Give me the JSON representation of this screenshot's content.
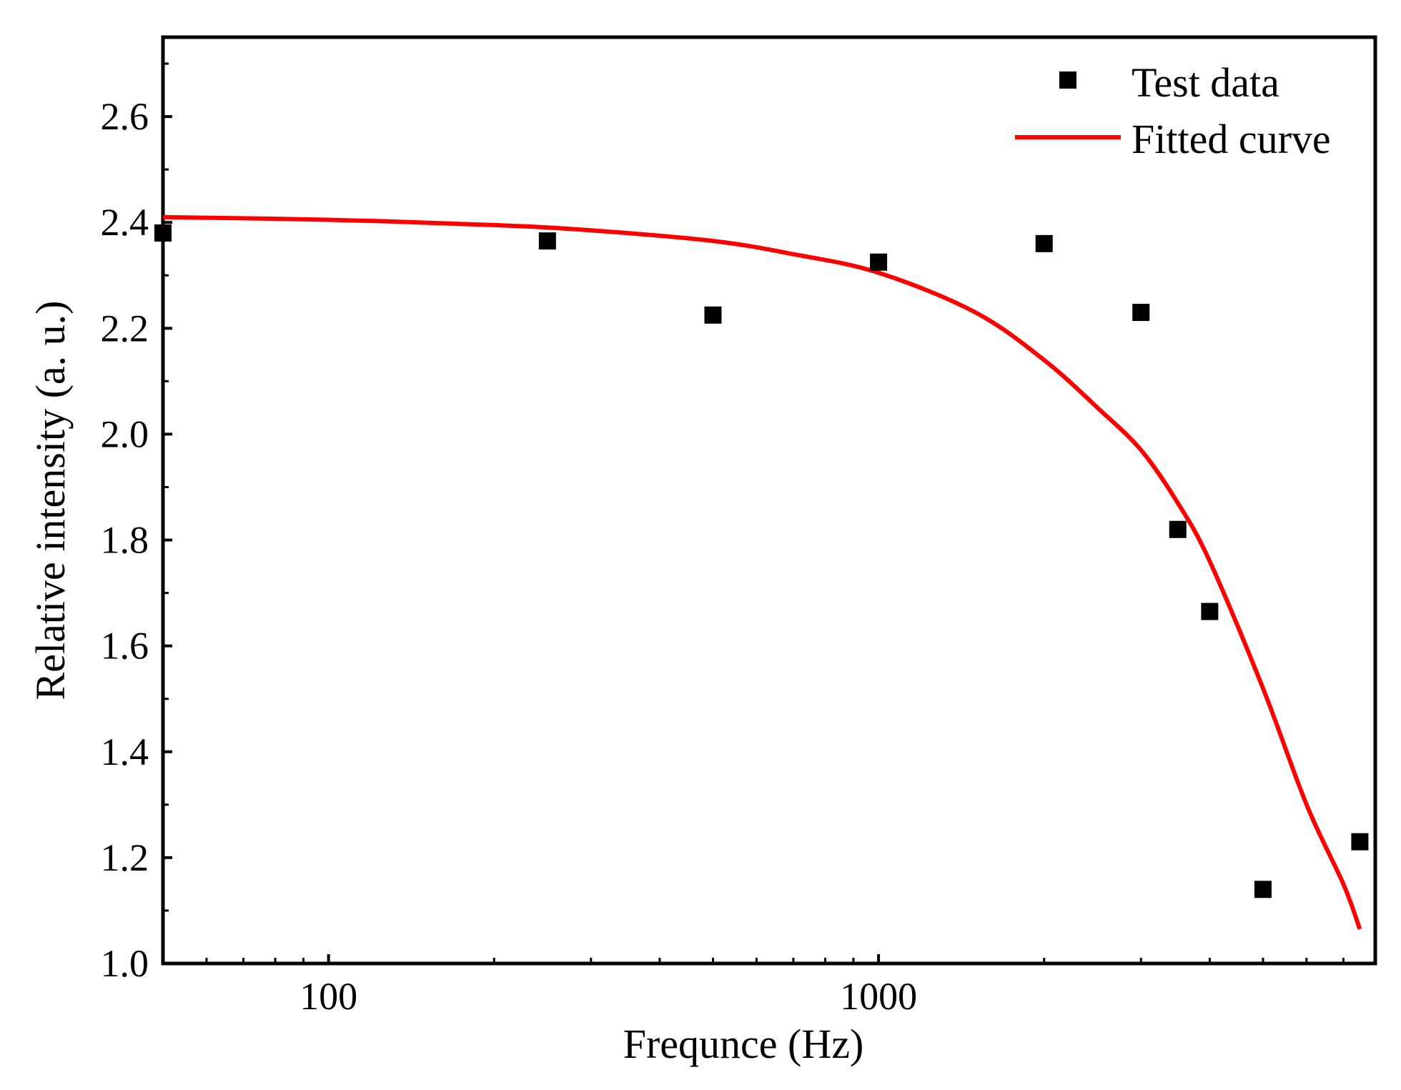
{
  "chart_data": {
    "type": "scatter",
    "xlabel": "Frequnce (Hz)",
    "ylabel": "Relative intensity (a. u.)",
    "xscale": "log",
    "xlim": [
      50,
      8000
    ],
    "ylim": [
      1.0,
      2.75
    ],
    "xticks": [
      100,
      1000
    ],
    "xtick_labels": [
      "100",
      "1000"
    ],
    "yticks": [
      1.0,
      1.2,
      1.4,
      1.6,
      1.8,
      2.0,
      2.2,
      2.4,
      2.6
    ],
    "ytick_labels": [
      "1.0",
      "1.2",
      "1.4",
      "1.6",
      "1.8",
      "2.0",
      "2.2",
      "2.4",
      "2.6"
    ],
    "legend_position": "top-right",
    "series": [
      {
        "name": "Test data",
        "kind": "scatter",
        "marker": "square",
        "color": "#000000",
        "x": [
          50,
          250,
          500,
          1000,
          2000,
          3000,
          3500,
          4000,
          5000,
          7500
        ],
        "y": [
          2.38,
          2.365,
          2.225,
          2.325,
          2.36,
          2.23,
          1.82,
          1.665,
          1.14,
          1.23
        ]
      },
      {
        "name": "Fitted curve",
        "kind": "line",
        "color": "#ff0000",
        "x": [
          50,
          100,
          200,
          300,
          500,
          700,
          1000,
          1500,
          2000,
          2500,
          3000,
          3500,
          4000,
          5000,
          6000,
          7000,
          7500
        ],
        "y": [
          2.41,
          2.405,
          2.395,
          2.385,
          2.365,
          2.34,
          2.305,
          2.23,
          2.14,
          2.05,
          1.97,
          1.87,
          1.76,
          1.52,
          1.3,
          1.15,
          1.065
        ]
      }
    ]
  }
}
